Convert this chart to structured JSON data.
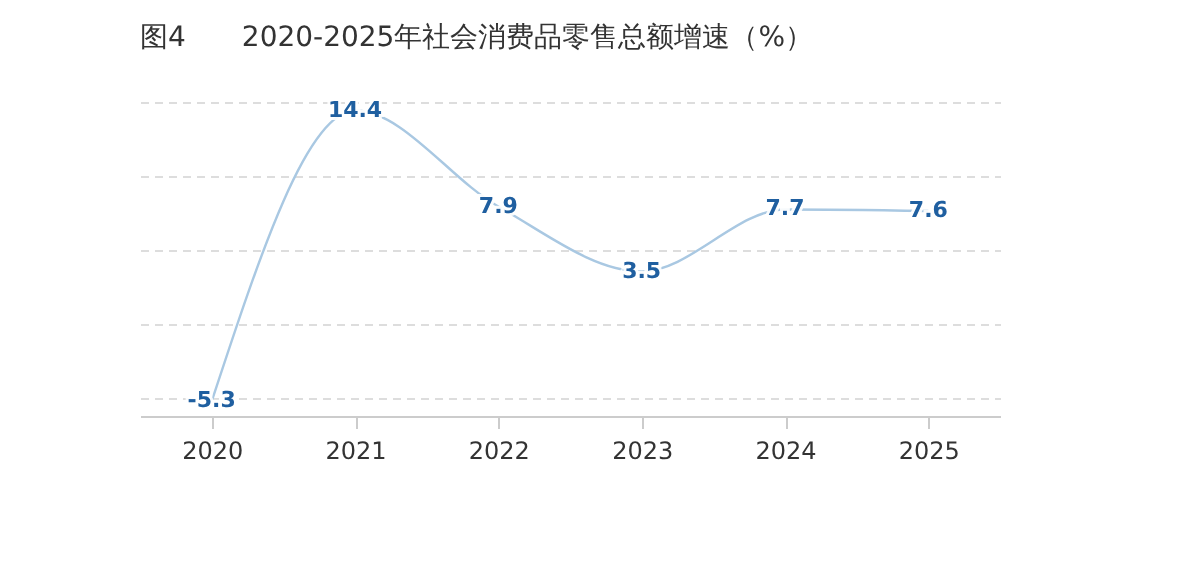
{
  "chart_data": {
    "type": "line",
    "title": "图4　　2020-2025年社会消费品零售总额增速（%）",
    "categories": [
      "2020",
      "2021",
      "2022",
      "2023",
      "2024",
      "2025"
    ],
    "series": [
      {
        "color": "#a9c8e2",
        "values": [
          -5.3,
          14.4,
          7.9,
          3.5,
          7.7,
          7.6
        ]
      }
    ],
    "data_labels": true,
    "grid": "y",
    "tick_labels": "x",
    "marker": "none",
    "line_style": "solid"
  }
}
